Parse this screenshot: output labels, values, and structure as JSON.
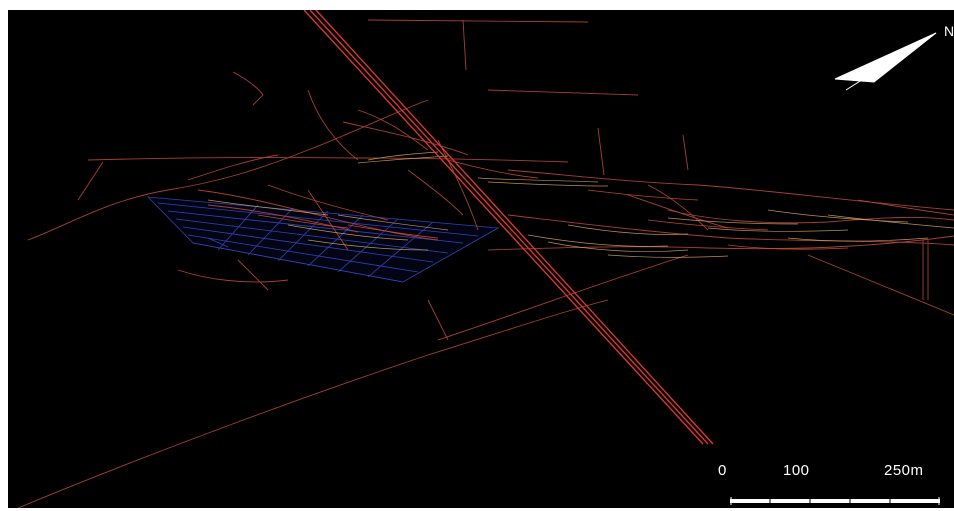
{
  "north_label": "N",
  "scale": {
    "label_start": "0",
    "label_mid": "100",
    "label_end": "250m"
  },
  "colors": {
    "background": "#000000",
    "fracture_trace": "#c84a38",
    "trace_highlight": "#e8b46a",
    "grid_plane": "#3a4fd0",
    "fault_line": "#e03a2e",
    "scale_bar": "#ffffff"
  }
}
